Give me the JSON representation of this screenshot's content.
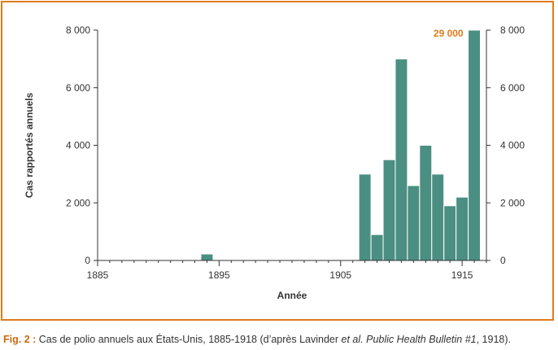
{
  "chart_data": {
    "type": "bar",
    "x": [
      1894,
      1907,
      1908,
      1909,
      1910,
      1911,
      1912,
      1913,
      1914,
      1915,
      1916
    ],
    "values": [
      225,
      3000,
      900,
      3500,
      7000,
      2600,
      4000,
      3000,
      1900,
      2200,
      8000
    ],
    "xlabel": "Année",
    "ylabel": "Cas rapportés annuels",
    "xlim": [
      1885,
      1917
    ],
    "ylim": [
      0,
      8000
    ],
    "x_ticks": [
      "1885",
      "1895",
      "1905",
      "1915"
    ],
    "y_ticks_left": [
      "8 000",
      "6 000",
      "4 000",
      "2 000",
      "0"
    ],
    "y_ticks_right": [
      "8 000",
      "6 000",
      "4 000",
      "2 000",
      "0"
    ],
    "annotation": "29 000",
    "bar_color": "#4a8f82",
    "grid": false
  },
  "caption": {
    "label": "Fig. 2 :",
    "text_before": " Cas de polio annuels aux États-Unis, 1885-1918 (d’après Lavinder ",
    "italic_1": "et al.",
    "text_middle": " ",
    "italic_2": "Public Health Bulletin #1",
    "text_after": ", 1918)."
  },
  "colors": {
    "frame": "#e07b1c",
    "annotation": "#e07b1c",
    "text": "#333333"
  }
}
